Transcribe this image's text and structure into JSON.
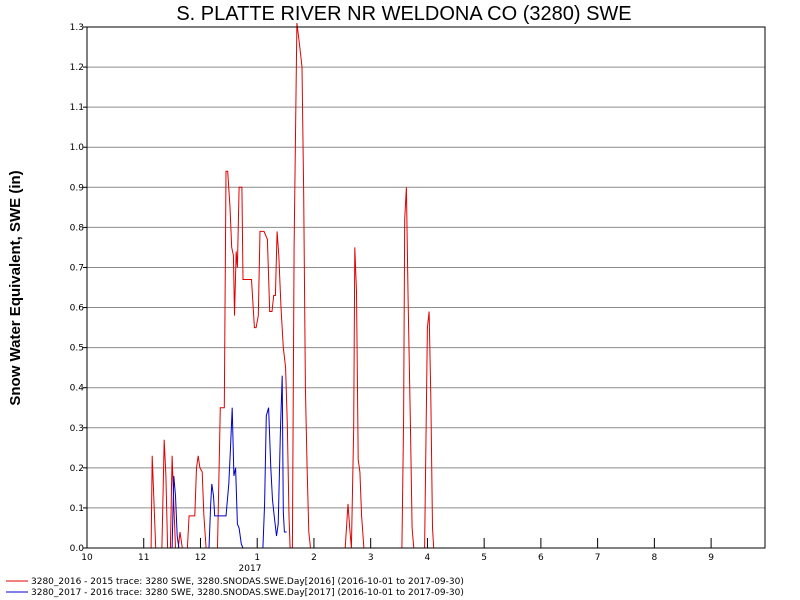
{
  "chart_data": {
    "type": "line",
    "title": "S. PLATTE RIVER NR WELDONA CO (3280) SWE",
    "ylabel": "Snow Water Equivalent, SWE (in)",
    "xlabel": "",
    "ylim": [
      0,
      1.3
    ],
    "yticks": [
      "0.0",
      "0.1",
      "0.2",
      "0.3",
      "0.4",
      "0.5",
      "0.6",
      "0.7",
      "0.8",
      "0.9",
      "1.0",
      "1.1",
      "1.2",
      "1.3"
    ],
    "x_range_months": [
      0,
      12
    ],
    "xticks": [
      "10",
      "11",
      "12",
      "1",
      "2",
      "3",
      "4",
      "5",
      "6",
      "7",
      "8",
      "9"
    ],
    "year_label": "2017",
    "grid": true,
    "legend_position": "bottom-left",
    "colors": {
      "series1": "#e00000",
      "series2": "#0000cc"
    },
    "series": [
      {
        "name": "3280_2016 - 2015 trace: 3280 SWE, 3280.SNODAS.SWE.Day[2016] (2016-10-01 to 2017-09-30)",
        "color": "#e00000",
        "points": [
          [
            1.13,
            0
          ],
          [
            1.15,
            0.23
          ],
          [
            1.18,
            0.12
          ],
          [
            1.21,
            0
          ],
          [
            1.32,
            0
          ],
          [
            1.36,
            0.27
          ],
          [
            1.39,
            0.18
          ],
          [
            1.42,
            0
          ],
          [
            1.47,
            0
          ],
          [
            1.5,
            0.23
          ],
          [
            1.53,
            0.11
          ],
          [
            1.56,
            0
          ],
          [
            1.61,
            0
          ],
          [
            1.64,
            0.04
          ],
          [
            1.68,
            0
          ],
          [
            1.77,
            0
          ],
          [
            1.8,
            0.08
          ],
          [
            1.85,
            0.08
          ],
          [
            1.9,
            0.08
          ],
          [
            1.93,
            0.2
          ],
          [
            1.96,
            0.23
          ],
          [
            1.99,
            0.2
          ],
          [
            2.03,
            0.19
          ],
          [
            2.06,
            0.08
          ],
          [
            2.1,
            0
          ],
          [
            2.3,
            0
          ],
          [
            2.35,
            0.35
          ],
          [
            2.42,
            0.35
          ],
          [
            2.45,
            0.94
          ],
          [
            2.48,
            0.94
          ],
          [
            2.52,
            0.85
          ],
          [
            2.55,
            0.75
          ],
          [
            2.58,
            0.73
          ],
          [
            2.6,
            0.58
          ],
          [
            2.63,
            0.74
          ],
          [
            2.65,
            0.7
          ],
          [
            2.68,
            0.9
          ],
          [
            2.73,
            0.9
          ],
          [
            2.75,
            0.67
          ],
          [
            2.8,
            0.67
          ],
          [
            2.9,
            0.67
          ],
          [
            2.95,
            0.55
          ],
          [
            2.98,
            0.55
          ],
          [
            3.02,
            0.58
          ],
          [
            3.05,
            0.79
          ],
          [
            3.12,
            0.79
          ],
          [
            3.18,
            0.77
          ],
          [
            3.22,
            0.59
          ],
          [
            3.26,
            0.59
          ],
          [
            3.29,
            0.63
          ],
          [
            3.32,
            0.63
          ],
          [
            3.35,
            0.79
          ],
          [
            3.38,
            0.73
          ],
          [
            3.42,
            0.6
          ],
          [
            3.46,
            0.5
          ],
          [
            3.5,
            0.45
          ],
          [
            3.53,
            0.31
          ],
          [
            3.56,
            0.08
          ],
          [
            3.58,
            0
          ],
          [
            3.62,
            0
          ],
          [
            3.65,
            0.75
          ],
          [
            3.7,
            1.31
          ],
          [
            3.75,
            1.25
          ],
          [
            3.79,
            1.2
          ],
          [
            3.82,
            0.88
          ],
          [
            3.85,
            0.4
          ],
          [
            3.88,
            0.2
          ],
          [
            3.91,
            0.04
          ],
          [
            3.94,
            0
          ],
          [
            4.55,
            0
          ],
          [
            4.6,
            0.11
          ],
          [
            4.63,
            0.05
          ],
          [
            4.66,
            0
          ],
          [
            4.7,
            0.3
          ],
          [
            4.72,
            0.75
          ],
          [
            4.75,
            0.64
          ],
          [
            4.78,
            0.22
          ],
          [
            4.81,
            0.19
          ],
          [
            4.84,
            0.08
          ],
          [
            4.88,
            0
          ],
          [
            5.55,
            0
          ],
          [
            5.58,
            0.32
          ],
          [
            5.6,
            0.82
          ],
          [
            5.63,
            0.9
          ],
          [
            5.66,
            0.62
          ],
          [
            5.7,
            0.31
          ],
          [
            5.73,
            0.05
          ],
          [
            5.76,
            0
          ],
          [
            5.95,
            0
          ],
          [
            6.0,
            0.55
          ],
          [
            6.03,
            0.59
          ],
          [
            6.06,
            0.38
          ],
          [
            6.09,
            0.05
          ],
          [
            6.11,
            0
          ]
        ]
      },
      {
        "name": "3280_2017 - 2016 trace: 3280 SWE, 3280.SNODAS.SWE.Day[2017] (2016-10-01 to 2017-09-30)",
        "color": "#0000cc",
        "points": [
          [
            1.5,
            0
          ],
          [
            1.53,
            0.18
          ],
          [
            1.56,
            0.13
          ],
          [
            1.59,
            0.03
          ],
          [
            1.62,
            0
          ],
          [
            2.15,
            0
          ],
          [
            2.18,
            0.11
          ],
          [
            2.2,
            0.16
          ],
          [
            2.23,
            0.13
          ],
          [
            2.25,
            0.08
          ],
          [
            2.35,
            0.08
          ],
          [
            2.45,
            0.08
          ],
          [
            2.5,
            0.16
          ],
          [
            2.53,
            0.25
          ],
          [
            2.56,
            0.35
          ],
          [
            2.59,
            0.18
          ],
          [
            2.62,
            0.2
          ],
          [
            2.65,
            0.06
          ],
          [
            2.68,
            0.05
          ],
          [
            2.72,
            0.01
          ],
          [
            2.75,
            0
          ],
          [
            3.1,
            0
          ],
          [
            3.13,
            0.11
          ],
          [
            3.16,
            0.33
          ],
          [
            3.2,
            0.35
          ],
          [
            3.24,
            0.2
          ],
          [
            3.27,
            0.12
          ],
          [
            3.3,
            0.08
          ],
          [
            3.34,
            0.03
          ],
          [
            3.37,
            0.06
          ],
          [
            3.41,
            0.3
          ],
          [
            3.44,
            0.43
          ],
          [
            3.46,
            0.09
          ],
          [
            3.48,
            0.04
          ],
          [
            3.52,
            0.04
          ]
        ]
      }
    ]
  }
}
